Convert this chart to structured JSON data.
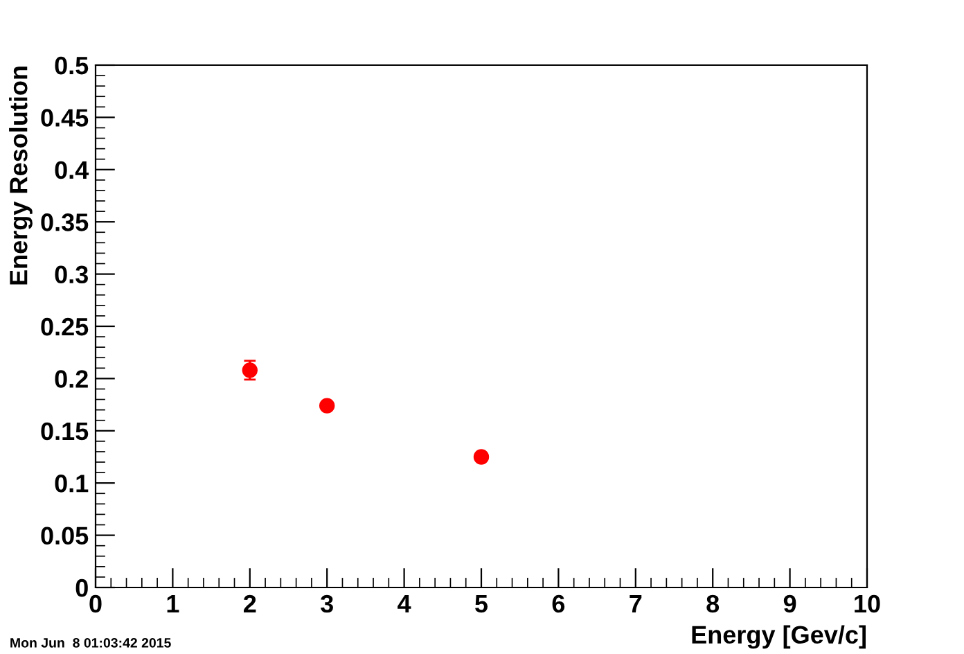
{
  "chart_data": {
    "type": "scatter",
    "xlabel": "Energy [Gev/c]",
    "ylabel": "Energy Resolution",
    "x": [
      2,
      3,
      5
    ],
    "series": [
      {
        "color": "#ff0000",
        "values": [
          0.208,
          0.174,
          0.125
        ],
        "errors": [
          0.009,
          null,
          null
        ]
      }
    ],
    "xlim": [
      0,
      10
    ],
    "xticks": [
      0,
      1,
      2,
      3,
      4,
      5,
      6,
      7,
      8,
      9,
      10
    ],
    "ylim": [
      0,
      0.5
    ],
    "yticks": [
      0,
      0.05,
      0.1,
      0.15,
      0.2,
      0.25,
      0.3,
      0.35,
      0.4,
      0.45,
      0.5
    ],
    "marker": "circle",
    "grid": false,
    "legend": false,
    "annotations": [
      "Mon Jun  8 01:03:42 2015"
    ]
  }
}
